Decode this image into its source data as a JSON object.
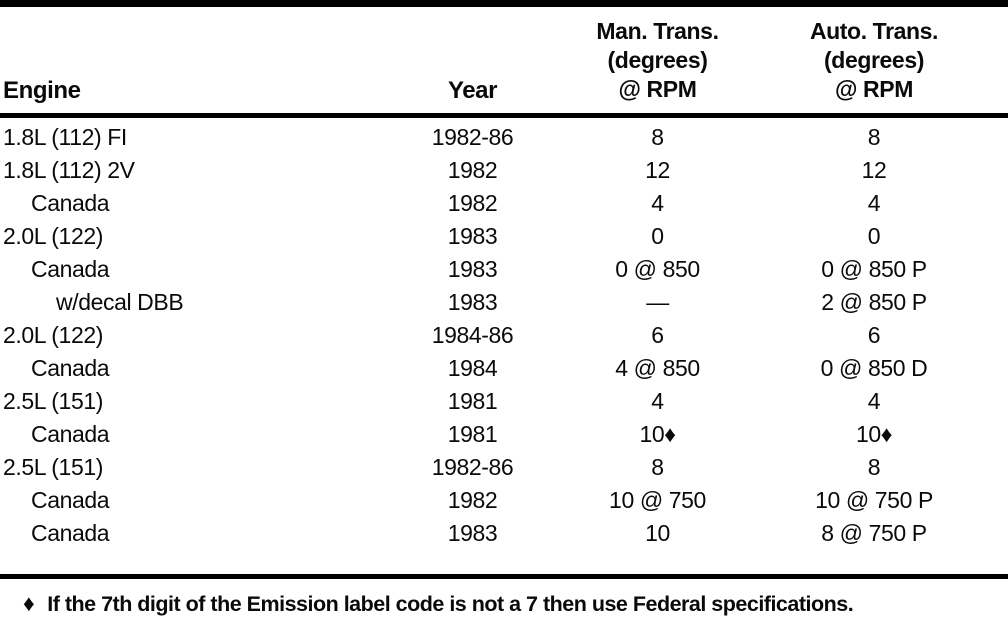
{
  "table": {
    "headers": {
      "engine": "Engine",
      "year": "Year",
      "man": {
        "line1": "Man. Trans.",
        "line2": "(degrees)",
        "line3": "@ RPM"
      },
      "auto": {
        "line1": "Auto. Trans.",
        "line2": "(degrees)",
        "line3": "@ RPM"
      }
    },
    "rows": [
      {
        "engine": "1.8L (112) FI",
        "indent": 0,
        "year": "1982-86",
        "man": "8",
        "auto": "8"
      },
      {
        "engine": "1.8L (112) 2V",
        "indent": 0,
        "year": "1982",
        "man": "12",
        "auto": "12"
      },
      {
        "engine": "Canada",
        "indent": 1,
        "year": "1982",
        "man": "4",
        "auto": "4"
      },
      {
        "engine": "2.0L (122)",
        "indent": 0,
        "year": "1983",
        "man": "0",
        "auto": "0"
      },
      {
        "engine": "Canada",
        "indent": 1,
        "year": "1983",
        "man": "0 @ 850",
        "auto": "0 @ 850 P"
      },
      {
        "engine": "w/decal DBB",
        "indent": 2,
        "year": "1983",
        "man": "—",
        "auto": "2 @ 850 P"
      },
      {
        "engine": "2.0L (122)",
        "indent": 0,
        "year": "1984-86",
        "man": "6",
        "auto": "6"
      },
      {
        "engine": "Canada",
        "indent": 1,
        "year": "1984",
        "man": "4 @ 850",
        "auto": "0 @ 850 D"
      },
      {
        "engine": "2.5L (151)",
        "indent": 0,
        "year": "1981",
        "man": "4",
        "auto": "4"
      },
      {
        "engine": "Canada",
        "indent": 1,
        "year": "1981",
        "man": "10♦",
        "auto": "10♦"
      },
      {
        "engine": "2.5L (151)",
        "indent": 0,
        "year": "1982-86",
        "man": "8",
        "auto": "8"
      },
      {
        "engine": "Canada",
        "indent": 1,
        "year": "1982",
        "man": "10 @ 750",
        "auto": "10 @ 750 P"
      },
      {
        "engine": "Canada",
        "indent": 1,
        "year": "1983",
        "man": "10",
        "auto": "8 @ 750 P"
      }
    ],
    "footnote": {
      "symbol": "♦",
      "text": "If the 7th digit of the Emission label code is not a 7 then use Federal specifications."
    }
  }
}
